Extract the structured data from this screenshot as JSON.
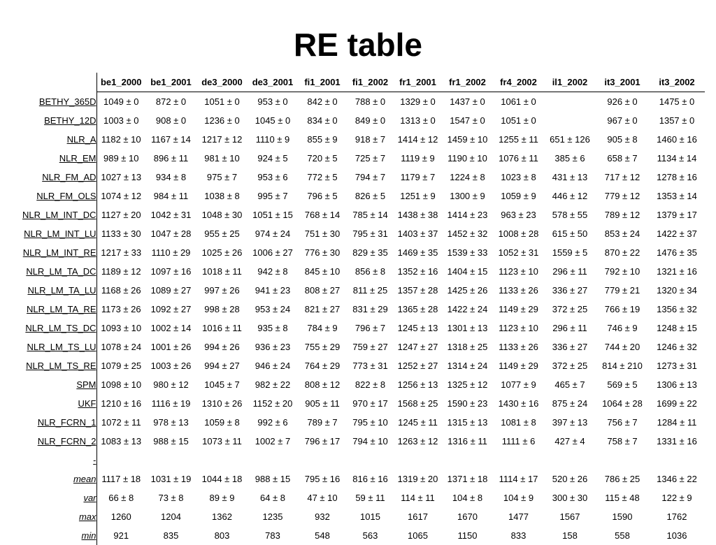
{
  "header": {
    "title": "RE table"
  },
  "table": {
    "columns": [
      "be1_2000",
      "be1_2001",
      "de3_2000",
      "de3_2001",
      "fi1_2001",
      "fi1_2002",
      "fr1_2001",
      "fr1_2002",
      "fr4_2002",
      "il1_2002",
      "it3_2001",
      "it3_2002"
    ],
    "rows": [
      {
        "label": "BETHY_365D",
        "cells": [
          "1049 ± 0",
          "872 ± 0",
          "1051 ± 0",
          "953 ± 0",
          "842 ± 0",
          "788 ± 0",
          "1329 ± 0",
          "1437 ± 0",
          "1061 ± 0",
          null,
          "926 ± 0",
          "1475 ± 0"
        ]
      },
      {
        "label": "BETHY_12D",
        "cells": [
          "1003 ± 0",
          "908 ± 0",
          "1236 ± 0",
          "1045 ± 0",
          "834 ± 0",
          "849 ± 0",
          "1313 ± 0",
          "1547 ± 0",
          "1051 ± 0",
          null,
          "967 ± 0",
          "1357 ± 0"
        ]
      },
      {
        "label": "NLR_A",
        "cells": [
          "1182 ± 10",
          "1167 ± 14",
          "1217 ± 12",
          "1110 ± 9",
          "855 ± 9",
          "918 ± 7",
          "1414 ± 12",
          "1459 ± 10",
          "1255 ± 11",
          "651 ± 126",
          "905 ± 8",
          "1460 ± 16"
        ]
      },
      {
        "label": "NLR_EM",
        "cells": [
          "989 ± 10",
          "896 ± 11",
          "981 ± 10",
          "924 ± 5",
          "720 ± 5",
          "725 ± 7",
          "1119 ± 9",
          "1190 ± 10",
          "1076 ± 11",
          "385 ± 6",
          "658 ± 7",
          "1134 ± 14"
        ]
      },
      {
        "label": "NLR_FM_AD",
        "cells": [
          "1027 ± 13",
          "934 ± 8",
          "975 ± 7",
          "953 ± 6",
          "772 ± 5",
          "794 ± 7",
          "1179 ± 7",
          "1224 ± 8",
          "1023 ± 8",
          "431 ± 13",
          "717 ± 12",
          "1278 ± 16"
        ]
      },
      {
        "label": "NLR_FM_OLS",
        "cells": [
          "1074 ± 12",
          "984 ± 11",
          "1038 ± 8",
          "995 ± 7",
          "796 ± 5",
          "826 ± 5",
          "1251 ± 9",
          "1300 ± 9",
          "1059 ± 9",
          "446 ± 12",
          "779 ± 12",
          "1353 ± 14"
        ]
      },
      {
        "label": "NLR_LM_INT_DC",
        "cells": [
          "1127 ± 20",
          "1042 ± 31",
          "1048 ± 30",
          "1051 ± 15",
          "768 ± 14",
          "785 ± 14",
          "1438 ± 38",
          "1414 ± 23",
          "963 ± 23",
          "578 ± 55",
          "789 ± 12",
          "1379 ± 17"
        ]
      },
      {
        "label": "NLR_LM_INT_LU",
        "cells": [
          "1133 ± 30",
          "1047 ± 28",
          "955 ± 25",
          "974 ± 24",
          "751 ± 30",
          "795 ± 31",
          "1403 ± 37",
          "1452 ± 32",
          "1008 ± 28",
          "615 ± 50",
          "853 ± 24",
          "1422 ± 37"
        ]
      },
      {
        "label": "NLR_LM_INT_RE",
        "cells": [
          "1217 ± 33",
          "1110 ± 29",
          "1025 ± 26",
          "1006 ± 27",
          "776 ± 30",
          "829 ± 35",
          "1469 ± 35",
          "1539 ± 33",
          "1052 ± 31",
          "1559 ± 5",
          "870 ± 22",
          "1476 ± 35"
        ]
      },
      {
        "label": "NLR_LM_TA_DC",
        "cells": [
          "1189 ± 12",
          "1097 ± 16",
          "1018 ± 11",
          "942 ± 8",
          "845 ± 10",
          "856 ± 8",
          "1352 ± 16",
          "1404 ± 15",
          "1123 ± 10",
          "296 ± 11",
          "792 ± 10",
          "1321 ± 16"
        ]
      },
      {
        "label": "NLR_LM_TA_LU",
        "cells": [
          "1168 ± 26",
          "1089 ± 27",
          "997 ± 26",
          "941 ± 23",
          "808 ± 27",
          "811 ± 25",
          "1357 ± 28",
          "1425 ± 26",
          "1133 ± 26",
          "336 ± 27",
          "779 ± 21",
          "1320 ± 34"
        ]
      },
      {
        "label": "NLR_LM_TA_RE",
        "cells": [
          "1173 ± 26",
          "1092 ± 27",
          "998 ± 28",
          "953 ± 24",
          "821 ± 27",
          "831 ± 29",
          "1365 ± 28",
          "1422 ± 24",
          "1149 ± 29",
          "372 ± 25",
          "766 ± 19",
          "1356 ± 32"
        ]
      },
      {
        "label": "NLR_LM_TS_DC",
        "cells": [
          "1093 ± 10",
          "1002 ± 14",
          "1016 ± 11",
          "935 ± 8",
          "784 ± 9",
          "796 ± 7",
          "1245 ± 13",
          "1301 ± 13",
          "1123 ± 10",
          "296 ± 11",
          "746 ± 9",
          "1248 ± 15"
        ]
      },
      {
        "label": "NLR_LM_TS_LU",
        "cells": [
          "1078 ± 24",
          "1001 ± 26",
          "994 ± 26",
          "936 ± 23",
          "755 ± 29",
          "759 ± 27",
          "1247 ± 27",
          "1318 ± 25",
          "1133 ± 26",
          "336 ± 27",
          "744 ± 20",
          "1246 ± 32"
        ]
      },
      {
        "label": "NLR_LM_TS_RE",
        "cells": [
          "1079 ± 25",
          "1003 ± 26",
          "994 ± 27",
          "946 ± 24",
          "764 ± 29",
          "773 ± 31",
          "1252 ± 27",
          "1314 ± 24",
          "1149 ± 29",
          "372 ± 25",
          "814 ± 210",
          "1273 ± 31"
        ]
      },
      {
        "label": "SPM",
        "cells": [
          "1098 ± 10",
          "980 ± 12",
          "1045 ± 7",
          "982 ± 22",
          "808 ± 12",
          "822 ± 8",
          "1256 ± 13",
          "1325 ± 12",
          "1077 ± 9",
          "465 ± 7",
          "569 ± 5",
          "1306 ± 13"
        ]
      },
      {
        "label": "UKF",
        "cells": [
          "1210 ± 16",
          "1116 ± 19",
          "1310 ± 26",
          "1152 ± 20",
          "905 ± 11",
          "970 ± 17",
          "1568 ± 25",
          "1590 ± 23",
          "1430 ± 16",
          "875 ± 24",
          "1064 ± 28",
          "1699 ± 22"
        ]
      },
      {
        "label": "NLR_FCRN_1",
        "cells": [
          "1072 ± 11",
          "978 ± 13",
          "1059 ± 8",
          "992 ± 6",
          "789 ± 7",
          "795 ± 10",
          "1245 ± 11",
          "1315 ± 13",
          "1081 ± 8",
          "397 ± 13",
          "756 ± 7",
          "1284 ± 11"
        ]
      },
      {
        "label": "NLR_FCRN_2",
        "cells": [
          "1083 ± 13",
          "988 ± 15",
          "1073 ± 11",
          "1002 ± 7",
          "796 ± 17",
          "794 ± 10",
          "1263 ± 12",
          "1316 ± 11",
          "1111 ± 6",
          "427 ± 4",
          "758 ± 7",
          "1331 ± 16"
        ]
      },
      {
        "label": "-",
        "cells": [
          null,
          null,
          null,
          null,
          null,
          null,
          null,
          null,
          null,
          null,
          null,
          null
        ]
      },
      {
        "label": "mean",
        "italic": true,
        "cells": [
          "1117 ± 18",
          "1031 ± 19",
          "1044 ± 18",
          "988 ± 15",
          "795 ± 16",
          "816 ± 16",
          "1319 ± 20",
          "1371 ± 18",
          "1114 ± 17",
          "520 ± 26",
          "786 ± 25",
          "1346 ± 22"
        ]
      },
      {
        "label": "var",
        "italic": true,
        "cells": [
          "66 ± 8",
          "73 ± 8",
          "89 ± 9",
          "64 ± 8",
          "47 ± 10",
          "59 ± 11",
          "114 ± 11",
          "104 ± 8",
          "104 ± 9",
          "300 ± 30",
          "115 ± 48",
          "122 ± 9"
        ]
      },
      {
        "label": "max",
        "italic": true,
        "cells": [
          "1260",
          "1204",
          "1362",
          "1235",
          "932",
          "1015",
          "1617",
          "1670",
          "1477",
          "1567",
          "1590",
          "1762"
        ]
      },
      {
        "label": "min",
        "italic": true,
        "cells": [
          "921",
          "835",
          "803",
          "783",
          "548",
          "563",
          "1065",
          "1150",
          "833",
          "158",
          "558",
          "1036"
        ]
      }
    ]
  }
}
